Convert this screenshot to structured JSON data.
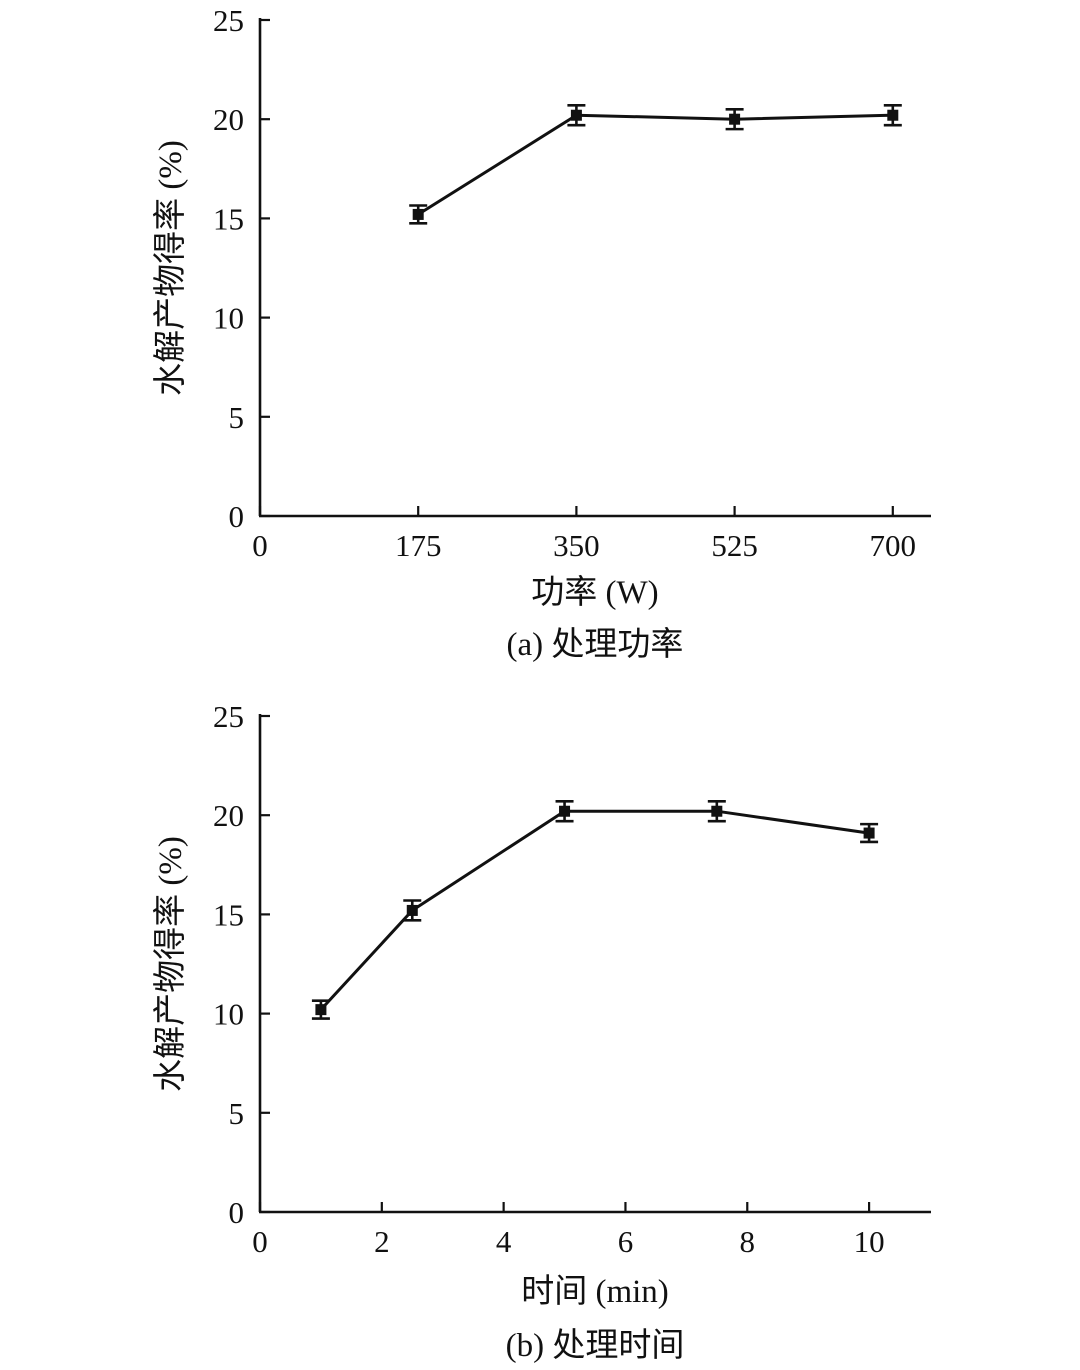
{
  "chart_data": [
    {
      "type": "line",
      "x": [
        175,
        350,
        525,
        700
      ],
      "series": [
        {
          "values": [
            15.2,
            20.2,
            20.0,
            20.2
          ],
          "errors": [
            0.45,
            0.5,
            0.5,
            0.5
          ]
        }
      ],
      "xlabel": "功率 (W)",
      "ylabel": "水解产物得率 (%)",
      "caption": "(a) 处理功率",
      "xlim": [
        0,
        750
      ],
      "ylim": [
        0,
        25
      ],
      "xticks": [
        0,
        175,
        350,
        525,
        700
      ],
      "yticks": [
        0,
        5,
        10,
        15,
        20,
        25
      ],
      "grid": false,
      "legend": "none",
      "marker": "square"
    },
    {
      "type": "line",
      "x": [
        1,
        2.5,
        5,
        7.5,
        10
      ],
      "series": [
        {
          "values": [
            10.2,
            15.2,
            20.2,
            20.2,
            19.1
          ],
          "errors": [
            0.45,
            0.5,
            0.5,
            0.5,
            0.45
          ]
        }
      ],
      "xlabel": "时间 (min)",
      "ylabel": "水解产物得率 (%)",
      "caption": "(b) 处理时间",
      "xlim": [
        0,
        11
      ],
      "ylim": [
        0,
        25
      ],
      "xticks": [
        0,
        2,
        4,
        6,
        8,
        10
      ],
      "yticks": [
        0,
        5,
        10,
        15,
        20,
        25
      ],
      "grid": false,
      "legend": "none",
      "marker": "square"
    }
  ]
}
